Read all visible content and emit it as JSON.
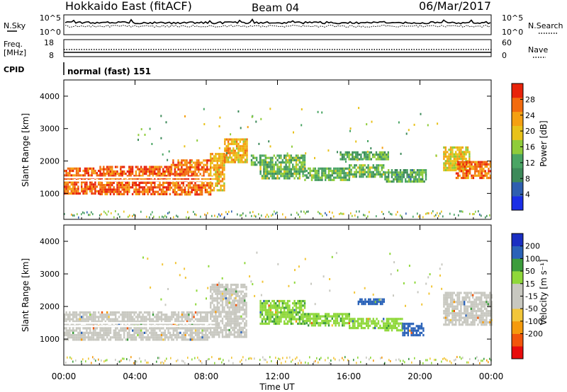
{
  "header": {
    "title": "Hokkaido East (fitACF)",
    "beam": "Beam 04",
    "date": "06/Mar/2017"
  },
  "status_panels": {
    "nsky_label": "N.Sky",
    "nsky_ticks": [
      "10^5",
      "10^0"
    ],
    "nsearch_label": "N.Search",
    "nsearch_ticks": [
      "10^5",
      "10^0"
    ],
    "freq_label": "Freq.",
    "freq_unit": "[MHz]",
    "freq_ticks": [
      "18",
      "8"
    ],
    "nave_label": "Nave",
    "nave_ticks": [
      "60",
      "0"
    ],
    "cpid_label": "CPID",
    "cpid_text": "normal (fast) 151"
  },
  "colors": {
    "power_scale": [
      "#1a2ee6",
      "#2f5fb0",
      "#3d8a5a",
      "#4aa564",
      "#8fcc3a",
      "#e8c21a",
      "#f5a012",
      "#f26b0e",
      "#e8230a"
    ],
    "velocity_scale": [
      "#e80c0c",
      "#f2560b",
      "#f59a0c",
      "#f2c63a",
      "#c8c8c0",
      "#c8c8c0",
      "#8fd83a",
      "#3c9c3c",
      "#2a62b8",
      "#1a2ec2"
    ]
  },
  "chart_data": [
    {
      "type": "heatmap",
      "name": "power",
      "xlabel": "",
      "ylabel": "Slant Range [km]",
      "xlim": [
        0,
        24
      ],
      "ylim": [
        200,
        4500
      ],
      "y_ticks": [
        "1000",
        "2000",
        "3000",
        "4000"
      ],
      "colorbar": {
        "label": "Power [dB]",
        "range": [
          0,
          32
        ],
        "ticks": [
          "4",
          "8",
          "12",
          "16",
          "20",
          "24",
          "28"
        ]
      },
      "echo_regions": [
        {
          "t0": 0.0,
          "t1": 2.0,
          "r0": 1000,
          "r1": 1800,
          "dB": 27
        },
        {
          "t0": 2.0,
          "t1": 6.0,
          "r0": 950,
          "r1": 1850,
          "dB": 27
        },
        {
          "t0": 6.0,
          "t1": 8.2,
          "r0": 1000,
          "r1": 2050,
          "dB": 26
        },
        {
          "t0": 8.2,
          "t1": 9.0,
          "r0": 1100,
          "r1": 2250,
          "dB": 22
        },
        {
          "t0": 9.0,
          "t1": 10.3,
          "r0": 2000,
          "r1": 2700,
          "dB": 22
        },
        {
          "t0": 10.5,
          "t1": 11.0,
          "r0": 1900,
          "r1": 2200,
          "dB": 12
        },
        {
          "t0": 11.0,
          "t1": 13.5,
          "r0": 1500,
          "r1": 2200,
          "dB": 14
        },
        {
          "t0": 13.5,
          "t1": 16.0,
          "r0": 1450,
          "r1": 1800,
          "dB": 13
        },
        {
          "t0": 16.0,
          "t1": 18.0,
          "r0": 1500,
          "r1": 1900,
          "dB": 14
        },
        {
          "t0": 18.0,
          "t1": 20.3,
          "r0": 1400,
          "r1": 1750,
          "dB": 12
        },
        {
          "t0": 15.5,
          "t1": 18.2,
          "r0": 2050,
          "r1": 2300,
          "dB": 13
        },
        {
          "t0": 21.3,
          "t1": 22.8,
          "r0": 1700,
          "r1": 2450,
          "dB": 20
        },
        {
          "t0": 22.0,
          "t1": 24.0,
          "r0": 1450,
          "r1": 2000,
          "dB": 26
        }
      ]
    },
    {
      "type": "heatmap",
      "name": "velocity",
      "xlabel": "Time UT",
      "ylabel": "Slant Range [km]",
      "xlim": [
        0,
        24
      ],
      "x_ticks": [
        "00:00",
        "04:00",
        "08:00",
        "12:00",
        "16:00",
        "20:00",
        "00:00"
      ],
      "ylim": [
        200,
        4500
      ],
      "y_ticks": [
        "1000",
        "2000",
        "3000",
        "4000"
      ],
      "colorbar": {
        "label": "Velocity [m s⁻¹]",
        "range": [
          -250,
          250
        ],
        "ticks": [
          "200",
          "100",
          "50",
          "15",
          "-15",
          "-50",
          "-100",
          "-200"
        ]
      },
      "echo_regions": [
        {
          "t0": 0.0,
          "t1": 8.2,
          "r0": 950,
          "r1": 1850,
          "v": 0
        },
        {
          "t0": 8.2,
          "t1": 10.3,
          "r0": 1100,
          "r1": 2700,
          "v": 0
        },
        {
          "t0": 11.0,
          "t1": 13.5,
          "r0": 1500,
          "r1": 2200,
          "v": 40
        },
        {
          "t0": 13.5,
          "t1": 16.0,
          "r0": 1450,
          "r1": 1800,
          "v": 40
        },
        {
          "t0": 16.0,
          "t1": 18.0,
          "r0": 1350,
          "r1": 1650,
          "v": 30
        },
        {
          "t0": 18.0,
          "t1": 19.0,
          "r0": 1250,
          "r1": 1650,
          "v": 35
        },
        {
          "t0": 19.0,
          "t1": 20.2,
          "r0": 1150,
          "r1": 1500,
          "v": 180
        },
        {
          "t0": 16.5,
          "t1": 18.0,
          "r0": 2100,
          "r1": 2250,
          "v": 170
        },
        {
          "t0": 21.3,
          "t1": 24.0,
          "r0": 1450,
          "r1": 2450,
          "v": 0
        }
      ]
    }
  ]
}
